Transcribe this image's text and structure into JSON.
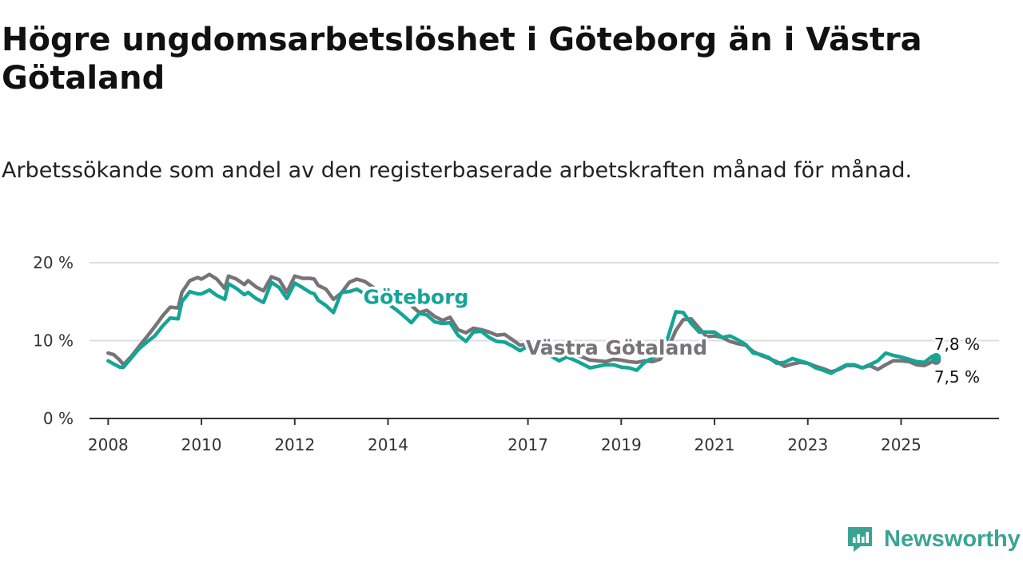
{
  "title": "Högre ungdomsarbetslöshet i Göteborg än i Västra Götaland",
  "subtitle": "Arbetssökande som andel av den registerbaserade arbetskraften månad för månad.",
  "brand": {
    "name": "Newsworthy",
    "logo_icon": "newsworthy-logo-icon"
  },
  "colors": {
    "goteborg": "#14a597",
    "vastra_gotaland": "#777377",
    "gridline": "#dddddd",
    "axis": "#333333"
  },
  "chart_data": {
    "type": "line",
    "title": "Högre ungdomsarbetslöshet i Göteborg än i Västra Götaland",
    "xlabel": "",
    "ylabel": "",
    "xlim": [
      2007.6,
      2027.1
    ],
    "ylim": [
      0,
      20
    ],
    "y_ticks": [
      {
        "value": 0,
        "label": "0 %"
      },
      {
        "value": 10,
        "label": "10 %"
      },
      {
        "value": 20,
        "label": "20 %"
      }
    ],
    "x_ticks": [
      {
        "value": 2008,
        "label": "2008"
      },
      {
        "value": 2010,
        "label": "2010"
      },
      {
        "value": 2012,
        "label": "2012"
      },
      {
        "value": 2014,
        "label": "2014"
      },
      {
        "value": 2017,
        "label": "2017"
      },
      {
        "value": 2019,
        "label": "2019"
      },
      {
        "value": 2021,
        "label": "2021"
      },
      {
        "value": 2023,
        "label": "2023"
      },
      {
        "value": 2025,
        "label": "2025"
      }
    ],
    "grid": true,
    "series": [
      {
        "name": "Västra Götaland",
        "color": "#777377",
        "label_at": {
          "x": 2018.9,
          "y": 8.2
        },
        "end_label": "7,5 %",
        "points": [
          [
            2008.0,
            8.4
          ],
          [
            2008.12,
            8.2
          ],
          [
            2008.25,
            7.5
          ],
          [
            2008.33,
            6.9
          ],
          [
            2008.5,
            8.0
          ],
          [
            2008.67,
            9.3
          ],
          [
            2008.83,
            10.5
          ],
          [
            2009.0,
            11.8
          ],
          [
            2009.17,
            13.2
          ],
          [
            2009.33,
            14.3
          ],
          [
            2009.5,
            14.2
          ],
          [
            2009.58,
            16.2
          ],
          [
            2009.75,
            17.7
          ],
          [
            2009.92,
            18.1
          ],
          [
            2010.0,
            17.9
          ],
          [
            2010.17,
            18.5
          ],
          [
            2010.33,
            17.9
          ],
          [
            2010.5,
            16.7
          ],
          [
            2010.58,
            18.3
          ],
          [
            2010.75,
            17.9
          ],
          [
            2010.92,
            17.2
          ],
          [
            2011.0,
            17.7
          ],
          [
            2011.17,
            16.9
          ],
          [
            2011.33,
            16.4
          ],
          [
            2011.5,
            18.2
          ],
          [
            2011.67,
            17.8
          ],
          [
            2011.83,
            16.2
          ],
          [
            2012.0,
            18.3
          ],
          [
            2012.17,
            18.0
          ],
          [
            2012.33,
            18.0
          ],
          [
            2012.42,
            17.9
          ],
          [
            2012.5,
            17.1
          ],
          [
            2012.67,
            16.6
          ],
          [
            2012.83,
            15.3
          ],
          [
            2013.0,
            16.1
          ],
          [
            2013.17,
            17.5
          ],
          [
            2013.33,
            17.9
          ],
          [
            2013.5,
            17.6
          ],
          [
            2013.67,
            16.9
          ],
          [
            2013.83,
            16.1
          ],
          [
            2014.0,
            16.3
          ],
          [
            2014.17,
            15.9
          ],
          [
            2014.33,
            14.9
          ],
          [
            2014.5,
            14.5
          ],
          [
            2014.67,
            13.6
          ],
          [
            2014.83,
            13.9
          ],
          [
            2015.0,
            13.1
          ],
          [
            2015.17,
            12.6
          ],
          [
            2015.33,
            13.0
          ],
          [
            2015.5,
            11.4
          ],
          [
            2015.67,
            11.0
          ],
          [
            2015.83,
            11.6
          ],
          [
            2016.0,
            11.4
          ],
          [
            2016.17,
            11.1
          ],
          [
            2016.33,
            10.7
          ],
          [
            2016.5,
            10.8
          ],
          [
            2016.67,
            10.1
          ],
          [
            2016.83,
            9.4
          ],
          [
            2017.0,
            9.6
          ],
          [
            2017.17,
            9.5
          ],
          [
            2017.33,
            9.1
          ],
          [
            2017.5,
            8.4
          ],
          [
            2017.67,
            8.3
          ],
          [
            2017.83,
            8.5
          ],
          [
            2018.0,
            8.2
          ],
          [
            2018.17,
            7.9
          ],
          [
            2018.33,
            7.5
          ],
          [
            2018.5,
            7.4
          ],
          [
            2018.67,
            7.3
          ],
          [
            2018.83,
            7.6
          ],
          [
            2019.0,
            7.5
          ],
          [
            2019.17,
            7.3
          ],
          [
            2019.33,
            7.2
          ],
          [
            2019.5,
            7.4
          ],
          [
            2019.67,
            7.3
          ],
          [
            2019.83,
            7.6
          ],
          [
            2020.0,
            9.0
          ],
          [
            2020.17,
            11.3
          ],
          [
            2020.33,
            12.7
          ],
          [
            2020.5,
            12.8
          ],
          [
            2020.67,
            11.6
          ],
          [
            2020.83,
            10.5
          ],
          [
            2021.0,
            10.6
          ],
          [
            2021.17,
            10.4
          ],
          [
            2021.33,
            9.9
          ],
          [
            2021.5,
            9.6
          ],
          [
            2021.67,
            9.4
          ],
          [
            2021.83,
            8.6
          ],
          [
            2022.0,
            8.1
          ],
          [
            2022.17,
            7.7
          ],
          [
            2022.33,
            7.3
          ],
          [
            2022.5,
            6.7
          ],
          [
            2022.67,
            7.0
          ],
          [
            2022.83,
            7.2
          ],
          [
            2023.0,
            7.1
          ],
          [
            2023.17,
            6.7
          ],
          [
            2023.33,
            6.4
          ],
          [
            2023.5,
            6.0
          ],
          [
            2023.67,
            6.3
          ],
          [
            2023.83,
            6.8
          ],
          [
            2024.0,
            6.8
          ],
          [
            2024.17,
            6.5
          ],
          [
            2024.33,
            6.8
          ],
          [
            2024.5,
            6.3
          ],
          [
            2024.67,
            6.9
          ],
          [
            2024.83,
            7.4
          ],
          [
            2025.0,
            7.4
          ],
          [
            2025.17,
            7.3
          ],
          [
            2025.33,
            6.9
          ],
          [
            2025.5,
            6.8
          ],
          [
            2025.67,
            7.3
          ],
          [
            2025.75,
            7.5
          ]
        ]
      },
      {
        "name": "Göteborg",
        "color": "#14a597",
        "label_at": {
          "x": 2014.6,
          "y": 14.7
        },
        "end_label": "7,8 %",
        "points": [
          [
            2008.0,
            7.4
          ],
          [
            2008.12,
            7.0
          ],
          [
            2008.25,
            6.6
          ],
          [
            2008.33,
            6.6
          ],
          [
            2008.5,
            7.8
          ],
          [
            2008.67,
            9.0
          ],
          [
            2008.83,
            9.8
          ],
          [
            2009.0,
            10.6
          ],
          [
            2009.17,
            11.9
          ],
          [
            2009.33,
            12.9
          ],
          [
            2009.5,
            12.8
          ],
          [
            2009.58,
            15.0
          ],
          [
            2009.75,
            16.3
          ],
          [
            2009.92,
            16.0
          ],
          [
            2010.0,
            16.0
          ],
          [
            2010.17,
            16.5
          ],
          [
            2010.33,
            15.8
          ],
          [
            2010.5,
            15.3
          ],
          [
            2010.58,
            17.3
          ],
          [
            2010.75,
            16.7
          ],
          [
            2010.92,
            15.9
          ],
          [
            2011.0,
            16.2
          ],
          [
            2011.17,
            15.4
          ],
          [
            2011.33,
            14.9
          ],
          [
            2011.5,
            17.5
          ],
          [
            2011.67,
            16.8
          ],
          [
            2011.83,
            15.4
          ],
          [
            2012.0,
            17.4
          ],
          [
            2012.17,
            16.8
          ],
          [
            2012.33,
            16.2
          ],
          [
            2012.42,
            16.0
          ],
          [
            2012.5,
            15.2
          ],
          [
            2012.67,
            14.5
          ],
          [
            2012.83,
            13.6
          ],
          [
            2013.0,
            16.2
          ],
          [
            2013.17,
            16.3
          ],
          [
            2013.33,
            16.6
          ],
          [
            2013.5,
            16.0
          ],
          [
            2013.67,
            15.3
          ],
          [
            2013.83,
            14.9
          ],
          [
            2014.0,
            14.7
          ],
          [
            2014.17,
            14.0
          ],
          [
            2014.33,
            13.2
          ],
          [
            2014.5,
            12.3
          ],
          [
            2014.67,
            13.5
          ],
          [
            2014.83,
            13.3
          ],
          [
            2015.0,
            12.4
          ],
          [
            2015.17,
            12.2
          ],
          [
            2015.33,
            12.3
          ],
          [
            2015.5,
            10.7
          ],
          [
            2015.67,
            9.9
          ],
          [
            2015.83,
            11.1
          ],
          [
            2016.0,
            11.2
          ],
          [
            2016.17,
            10.4
          ],
          [
            2016.33,
            9.9
          ],
          [
            2016.5,
            9.8
          ],
          [
            2016.67,
            9.3
          ],
          [
            2016.83,
            8.7
          ],
          [
            2017.0,
            9.3
          ],
          [
            2017.17,
            8.8
          ],
          [
            2017.33,
            8.5
          ],
          [
            2017.5,
            8.0
          ],
          [
            2017.67,
            7.4
          ],
          [
            2017.83,
            7.9
          ],
          [
            2018.0,
            7.5
          ],
          [
            2018.17,
            7.0
          ],
          [
            2018.33,
            6.5
          ],
          [
            2018.5,
            6.7
          ],
          [
            2018.67,
            6.9
          ],
          [
            2018.83,
            6.9
          ],
          [
            2019.0,
            6.6
          ],
          [
            2019.17,
            6.5
          ],
          [
            2019.33,
            6.2
          ],
          [
            2019.5,
            7.2
          ],
          [
            2019.67,
            7.8
          ],
          [
            2019.83,
            8.2
          ],
          [
            2020.0,
            10.4
          ],
          [
            2020.17,
            13.7
          ],
          [
            2020.33,
            13.6
          ],
          [
            2020.5,
            12.2
          ],
          [
            2020.67,
            11.1
          ],
          [
            2020.83,
            11.1
          ],
          [
            2021.0,
            11.1
          ],
          [
            2021.17,
            10.4
          ],
          [
            2021.33,
            10.6
          ],
          [
            2021.5,
            10.1
          ],
          [
            2021.67,
            9.5
          ],
          [
            2021.83,
            8.4
          ],
          [
            2022.0,
            8.2
          ],
          [
            2022.17,
            7.8
          ],
          [
            2022.33,
            7.1
          ],
          [
            2022.5,
            7.2
          ],
          [
            2022.67,
            7.7
          ],
          [
            2022.83,
            7.4
          ],
          [
            2023.0,
            7.1
          ],
          [
            2023.17,
            6.5
          ],
          [
            2023.33,
            6.2
          ],
          [
            2023.5,
            5.8
          ],
          [
            2023.67,
            6.4
          ],
          [
            2023.83,
            6.9
          ],
          [
            2024.0,
            6.9
          ],
          [
            2024.17,
            6.5
          ],
          [
            2024.33,
            6.9
          ],
          [
            2024.5,
            7.4
          ],
          [
            2024.67,
            8.4
          ],
          [
            2024.83,
            8.1
          ],
          [
            2025.0,
            7.9
          ],
          [
            2025.17,
            7.6
          ],
          [
            2025.33,
            7.3
          ],
          [
            2025.5,
            7.2
          ],
          [
            2025.67,
            8.0
          ],
          [
            2025.75,
            7.8
          ]
        ]
      }
    ]
  }
}
